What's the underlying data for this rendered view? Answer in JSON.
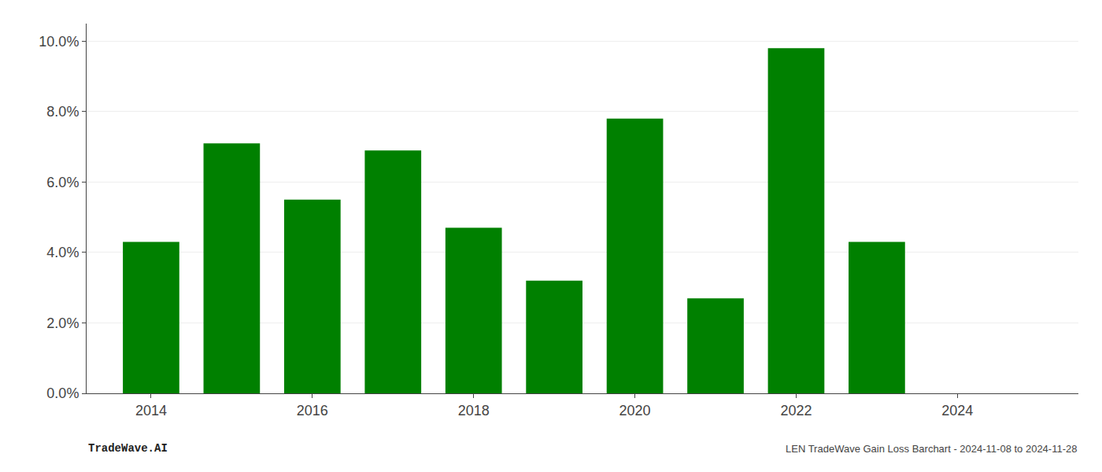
{
  "chart_data": {
    "type": "bar",
    "title": "LEN TradeWave Gain Loss Barchart - 2024-11-08 to 2024-11-28",
    "annotations": [
      "TradeWave.AI"
    ],
    "x": [
      2014,
      2015,
      2016,
      2017,
      2018,
      2019,
      2020,
      2021,
      2022,
      2023
    ],
    "values": [
      0.043,
      0.071,
      0.055,
      0.069,
      0.047,
      0.032,
      0.078,
      0.027,
      0.098,
      0.043
    ],
    "color": "#008000",
    "xlim": [
      2013.2,
      2025.5
    ],
    "xticks": [
      2014,
      2016,
      2018,
      2020,
      2022,
      2024
    ],
    "ylim": [
      0,
      0.105
    ],
    "yticks": [
      {
        "value": 0.0,
        "label": "0.0%"
      },
      {
        "value": 0.02,
        "label": "2.0%"
      },
      {
        "value": 0.04,
        "label": "4.0%"
      },
      {
        "value": 0.06,
        "label": "6.0%"
      },
      {
        "value": 0.08,
        "label": "8.0%"
      },
      {
        "value": 0.1,
        "label": "10.0%"
      }
    ],
    "grid": true
  }
}
